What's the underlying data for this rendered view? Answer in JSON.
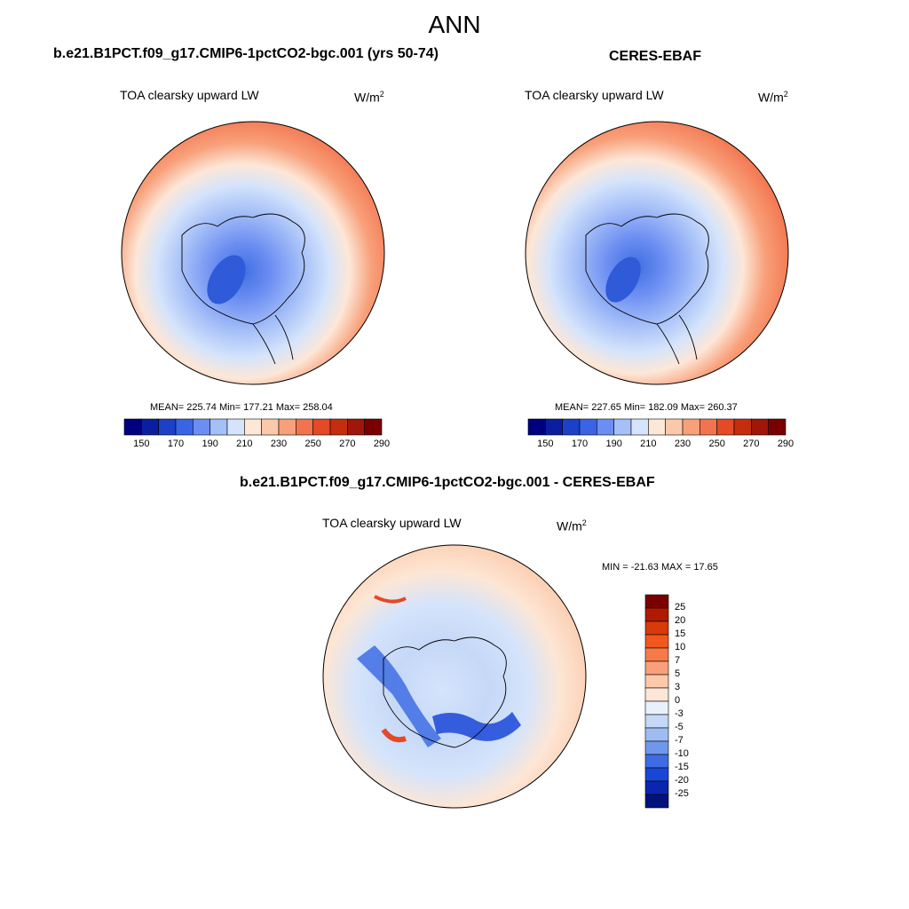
{
  "title": "ANN",
  "panels": [
    {
      "name": "b.e21.B1PCT.f09_g17.CMIP6-1pctCO2-bgc.001 (yrs 50-74)",
      "variable": "TOA clearsky upward LW",
      "units_base": "W/m",
      "units_sup": "2",
      "stats": "MEAN= 225.74  Min= 177.21  Max= 258.04"
    },
    {
      "name": "CERES-EBAF",
      "variable": "TOA clearsky upward LW",
      "units_base": "W/m",
      "units_sup": "2",
      "stats": "MEAN= 227.65  Min= 182.09  Max= 260.37"
    },
    {
      "name": "b.e21.B1PCT.f09_g17.CMIP6-1pctCO2-bgc.001 - CERES-EBAF",
      "variable": "TOA clearsky upward LW",
      "units_base": "W/m",
      "units_sup": "2",
      "stats": "MIN = -21.63 MAX =  17.65"
    }
  ],
  "colorbar_abs": {
    "colors": [
      "#00007f",
      "#0a1ea0",
      "#1c40c8",
      "#3a64e6",
      "#6c8ef2",
      "#a5bff8",
      "#d5e4fb",
      "#fde7d7",
      "#fbc9a9",
      "#f8a07a",
      "#f2744e",
      "#e34a25",
      "#c42d0e",
      "#a01608",
      "#7a0000"
    ],
    "labels": [
      "150",
      "170",
      "190",
      "210",
      "230",
      "250",
      "270",
      "290"
    ]
  },
  "colorbar_diff": {
    "colors": [
      "#7a0000",
      "#b01a00",
      "#d83a08",
      "#f2581c",
      "#f67a4a",
      "#f9a07a",
      "#fcc9aa",
      "#fde6d5",
      "#e8f0fb",
      "#c5d8f7",
      "#9fbcf2",
      "#6f97ec",
      "#3e6ce4",
      "#1a46d8",
      "#0a26b0",
      "#00137a"
    ],
    "labels": [
      "25",
      "20",
      "15",
      "10",
      "7",
      "5",
      "3",
      "0",
      "-3",
      "-5",
      "-7",
      "-10",
      "-15",
      "-20",
      "-25"
    ]
  }
}
